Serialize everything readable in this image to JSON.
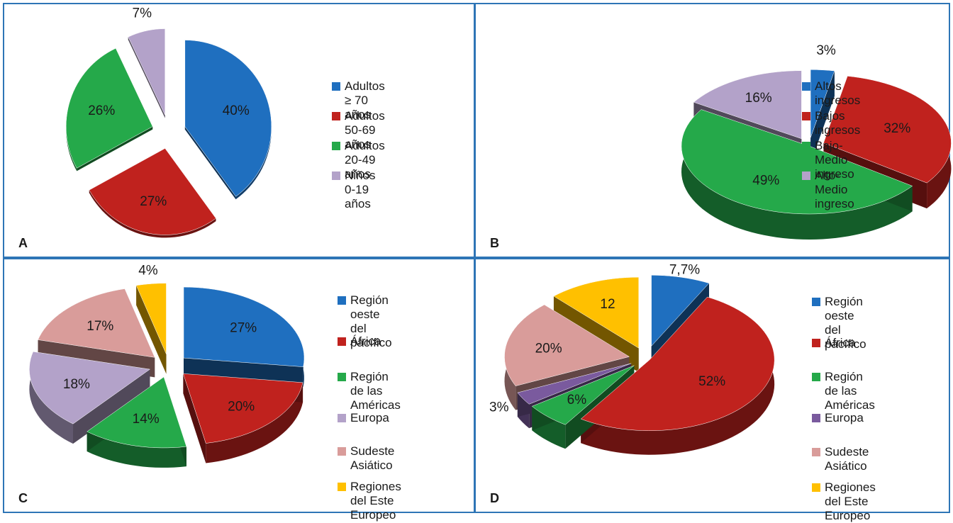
{
  "chart_data": [
    {
      "panel": "A",
      "type": "pie",
      "categories": [
        "Adultos ≥ 70 años",
        "Adultos 50-69 años",
        "Adultos 20-49 años",
        "Niños 0-19 años"
      ],
      "values": [
        40,
        27,
        26,
        7
      ],
      "labels": [
        "40%",
        "27%",
        "26%",
        "7%"
      ],
      "colors": [
        "#1f6fbf",
        "#c0221e",
        "#25a94a",
        "#b3a2c9"
      ],
      "legend": "right"
    },
    {
      "panel": "B",
      "type": "pie",
      "categories": [
        "Altos ingresos",
        "Bajos ingresos",
        "Bajo-Medio ingreso",
        "Alto-Medio ingreso"
      ],
      "values": [
        3,
        32,
        49,
        16
      ],
      "labels": [
        "3%",
        "32%",
        "49%",
        "16%"
      ],
      "colors": [
        "#1f6fbf",
        "#c0221e",
        "#25a94a",
        "#b3a2c9"
      ],
      "legend": "right"
    },
    {
      "panel": "C",
      "type": "pie",
      "categories": [
        "Región oeste del\npacífico",
        "África",
        "Región de las\nAméricas",
        "Europa",
        "Sudeste Asiático",
        "Regiones del Este\nEuropeo"
      ],
      "values": [
        27,
        20,
        14,
        18,
        17,
        4
      ],
      "labels": [
        "27%",
        "20%",
        "14%",
        "18%",
        "17%",
        "4%"
      ],
      "colors": [
        "#1f6fbf",
        "#c0221e",
        "#25a94a",
        "#b3a2c9",
        "#d99c9a",
        "#ffc000"
      ],
      "legend": "right"
    },
    {
      "panel": "D",
      "type": "pie",
      "categories": [
        "Región oeste del\npacífico",
        "África",
        "Región de las\nAméricas",
        "Europa",
        "Sudeste Asiático",
        "Regiones del Este\nEuropeo"
      ],
      "values": [
        7.7,
        52,
        6,
        3,
        20,
        12
      ],
      "labels": [
        "7,7%",
        "52%",
        "6%",
        "3%",
        "20%",
        "12"
      ],
      "colors": [
        "#1f6fbf",
        "#c0221e",
        "#25a94a",
        "#7a5a9e",
        "#d99c9a",
        "#ffc000"
      ],
      "legend": "right"
    }
  ],
  "panel_letters": {
    "a": "A",
    "b": "B",
    "c": "C",
    "d": "D"
  }
}
